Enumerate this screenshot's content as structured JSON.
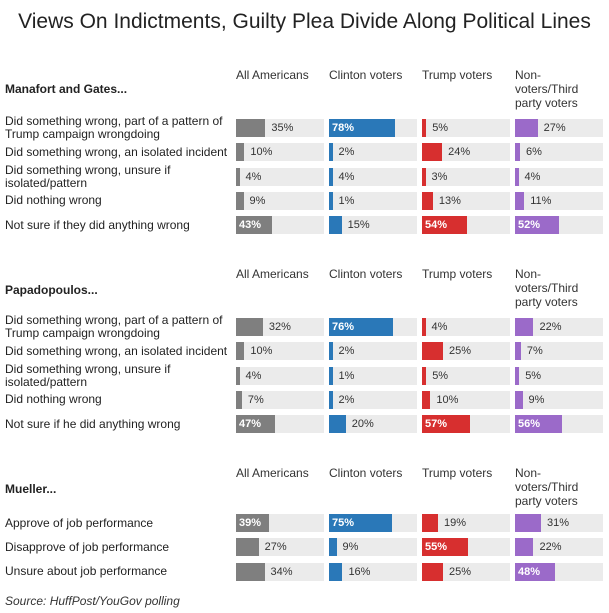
{
  "title": "Views On Indictments, Guilty Plea Divide Along Political Lines",
  "source": "Source: HuffPost/YouGov polling",
  "chart_data": {
    "type": "bar",
    "orientation": "horizontal",
    "xlim": [
      0,
      100
    ],
    "unit": "%",
    "groups": [
      "All Americans",
      "Clinton voters",
      "Trump voters",
      "Non-voters/Third party voters"
    ],
    "colors": {
      "All Americans": "#7f7f7f",
      "Clinton voters": "#2a78b8",
      "Trump voters": "#d72f2f",
      "Non-voters/Third party voters": "#9b6ac9",
      "track": "#ebebeb"
    },
    "sections": [
      {
        "title": "Manafort and Gates...",
        "rows": [
          {
            "label": "Did something wrong, part of a pattern of Trump campaign wrongdoing",
            "values": [
              35,
              78,
              5,
              27
            ]
          },
          {
            "label": "Did something wrong, an isolated incident",
            "values": [
              10,
              2,
              24,
              6
            ]
          },
          {
            "label": "Did something wrong, unsure if isolated/pattern",
            "values": [
              4,
              4,
              3,
              4
            ]
          },
          {
            "label": "Did nothing wrong",
            "values": [
              9,
              1,
              13,
              11
            ]
          },
          {
            "label": "Not sure if they did anything wrong",
            "values": [
              43,
              15,
              54,
              52
            ]
          }
        ]
      },
      {
        "title": "Papadopoulos...",
        "rows": [
          {
            "label": "Did something wrong, part of a pattern of Trump campaign wrongdoing",
            "values": [
              32,
              76,
              4,
              22
            ]
          },
          {
            "label": "Did something wrong, an isolated incident",
            "values": [
              10,
              2,
              25,
              7
            ]
          },
          {
            "label": "Did something wrong, unsure if isolated/pattern",
            "values": [
              4,
              1,
              5,
              5
            ]
          },
          {
            "label": "Did nothing wrong",
            "values": [
              7,
              2,
              10,
              9
            ]
          },
          {
            "label": "Not sure if he did anything wrong",
            "values": [
              47,
              20,
              57,
              56
            ]
          }
        ]
      },
      {
        "title": "Mueller...",
        "rows": [
          {
            "label": "Approve of job performance",
            "values": [
              39,
              75,
              19,
              31
            ]
          },
          {
            "label": "Disapprove of job performance",
            "values": [
              27,
              9,
              55,
              22
            ]
          },
          {
            "label": "Unsure about job performance",
            "values": [
              34,
              16,
              25,
              48
            ]
          }
        ]
      }
    ]
  }
}
